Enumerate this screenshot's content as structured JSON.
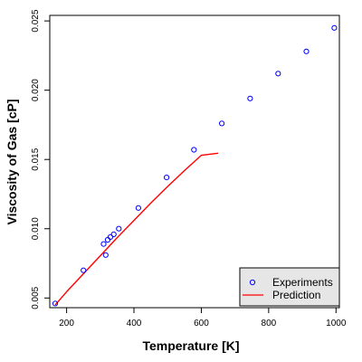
{
  "chart_data": {
    "type": "scatter",
    "xlabel": "Temperature [K]",
    "ylabel": "Viscosity of Gas [cP]",
    "xlim": [
      150,
      1010
    ],
    "ylim": [
      0.0043,
      0.0254
    ],
    "xticks": [
      {
        "value": 200,
        "label": "200"
      },
      {
        "value": 400,
        "label": "400"
      },
      {
        "value": 600,
        "label": "600"
      },
      {
        "value": 800,
        "label": "800"
      },
      {
        "value": 1000,
        "label": "1000"
      }
    ],
    "yticks": [
      {
        "value": 0.005,
        "label": "0.005"
      },
      {
        "value": 0.01,
        "label": "0.010"
      },
      {
        "value": 0.015,
        "label": "0.015"
      },
      {
        "value": 0.02,
        "label": "0.020"
      },
      {
        "value": 0.025,
        "label": "0.025"
      }
    ],
    "grid": false,
    "legend_position": "bottom-right",
    "series": [
      {
        "name": "Experiments",
        "kind": "points",
        "color": "#0000ff",
        "x": [
          166,
          250,
          310,
          316,
          322,
          330,
          340,
          355,
          413,
          497,
          578,
          661,
          745,
          828,
          912,
          995
        ],
        "y": [
          0.0046,
          0.007,
          0.0089,
          0.0081,
          0.0092,
          0.0094,
          0.0096,
          0.01,
          0.0115,
          0.0137,
          0.0157,
          0.0176,
          0.0194,
          0.0212,
          0.0228,
          0.0245
        ]
      },
      {
        "name": "Prediction",
        "kind": "line",
        "color": "#ff0000",
        "x": [
          166,
          200,
          250,
          300,
          350,
          400,
          450,
          500,
          550,
          600,
          650
        ],
        "y": [
          0.0045,
          0.00545,
          0.00675,
          0.00805,
          0.00935,
          0.0106,
          0.01185,
          0.01305,
          0.0142,
          0.0153,
          0.01545
        ]
      }
    ]
  }
}
